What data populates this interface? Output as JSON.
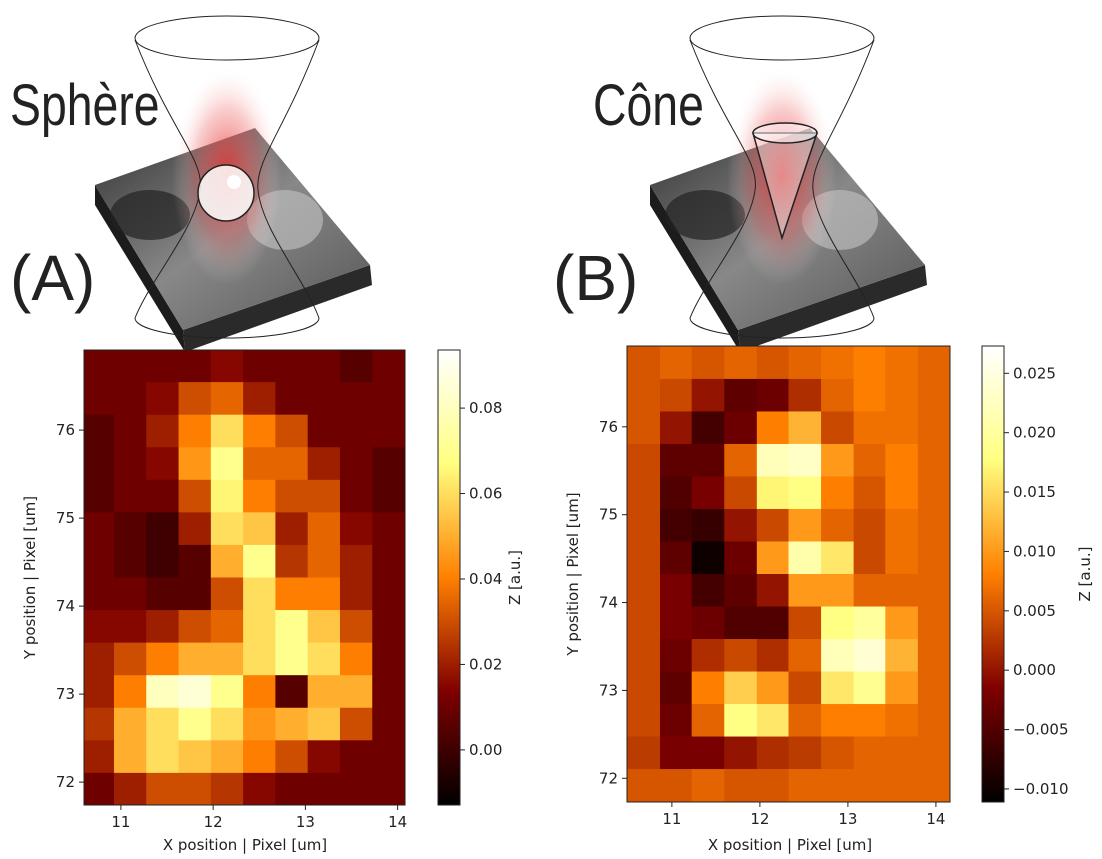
{
  "chart_data": [
    {
      "type": "heatmap",
      "illustration_title": "Sphère",
      "panel_label": "(A)",
      "x_label": "X position | Pixel [um]",
      "y_label": "Y position | Pixel [um]",
      "colorbar_label": "Z [a.u.]",
      "colormap": "afmhot",
      "xlim": [
        10.6,
        14.08
      ],
      "ylim": [
        71.74,
        76.91
      ],
      "clim": [
        -0.0129,
        0.0936
      ],
      "xticks": [
        11,
        12,
        13,
        14
      ],
      "yticks": [
        72,
        73,
        74,
        75,
        76
      ],
      "cticks": [
        {
          "value": 0,
          "label": "0.00"
        },
        0.02,
        0.04,
        0.06,
        0.08
      ],
      "x": [
        10.75,
        11.1,
        11.45,
        11.8,
        12.15,
        12.5,
        12.85,
        13.2,
        13.55,
        13.9
      ],
      "y": [
        76.73,
        76.36,
        75.99,
        75.62,
        75.25,
        74.88,
        74.51,
        74.14,
        73.77,
        73.4,
        73.03,
        72.66,
        72.29,
        71.92
      ],
      "z": [
        [
          0.01,
          0.01,
          0.01,
          0.01,
          0.015,
          0.01,
          0.01,
          0.01,
          0.005,
          0.01
        ],
        [
          0.01,
          0.01,
          0.015,
          0.03,
          0.035,
          0.02,
          0.01,
          0.01,
          0.01,
          0.01
        ],
        [
          0.005,
          0.01,
          0.02,
          0.04,
          0.06,
          0.04,
          0.03,
          0.01,
          0.01,
          0.01
        ],
        [
          0.005,
          0.01,
          0.015,
          0.045,
          0.07,
          0.035,
          0.035,
          0.02,
          0.01,
          0.005
        ],
        [
          0.005,
          0.01,
          0.01,
          0.03,
          0.065,
          0.04,
          0.03,
          0.03,
          0.01,
          0.005
        ],
        [
          0.01,
          0.005,
          0,
          0.02,
          0.06,
          0.055,
          0.02,
          0.035,
          0.015,
          0.01
        ],
        [
          0.01,
          0.005,
          0,
          0.005,
          0.05,
          0.07,
          0.025,
          0.035,
          0.02,
          0.01
        ],
        [
          0.01,
          0.01,
          0.005,
          0.005,
          0.03,
          0.06,
          0.04,
          0.04,
          0.02,
          0.01
        ],
        [
          0.015,
          0.015,
          0.02,
          0.03,
          0.035,
          0.06,
          0.07,
          0.055,
          0.03,
          0.01
        ],
        [
          0.02,
          0.03,
          0.04,
          0.05,
          0.05,
          0.06,
          0.07,
          0.06,
          0.04,
          0.01
        ],
        [
          0.02,
          0.04,
          0.08,
          0.085,
          0.07,
          0.04,
          0.005,
          0.05,
          0.05,
          0.01
        ],
        [
          0.025,
          0.05,
          0.06,
          0.07,
          0.06,
          0.045,
          0.05,
          0.055,
          0.03,
          0.01
        ],
        [
          0.02,
          0.05,
          0.06,
          0.055,
          0.05,
          0.04,
          0.03,
          0.015,
          0.01,
          0.01
        ],
        [
          0.01,
          0.02,
          0.03,
          0.03,
          0.025,
          0.015,
          0.01,
          0.01,
          0.01,
          0.01
        ]
      ]
    },
    {
      "type": "heatmap",
      "illustration_title": "Cône",
      "panel_label": "(B)",
      "x_label": "X position | Pixel [um]",
      "y_label": "Y position | Pixel [um]",
      "colorbar_label": "Z [a.u.]",
      "colormap": "afmhot",
      "xlim": [
        10.49,
        14.16
      ],
      "ylim": [
        71.73,
        76.92
      ],
      "clim": [
        -0.0111,
        0.0273
      ],
      "xticks": [
        11,
        12,
        13,
        14
      ],
      "yticks": [
        72,
        73,
        74,
        75,
        76
      ],
      "cticks": [
        {
          "value": -0.01,
          "label": "−0.010"
        },
        {
          "value": -0.005,
          "label": "−0.005"
        },
        {
          "value": 0,
          "label": "0.000"
        },
        0.005,
        {
          "value": 0.01,
          "label": "0.010"
        },
        0.015,
        {
          "value": 0.02,
          "label": "0.020"
        },
        0.025
      ],
      "x": [
        10.68,
        11.05,
        11.41,
        11.78,
        12.15,
        12.51,
        12.88,
        13.25,
        13.61,
        13.98
      ],
      "y": [
        76.73,
        76.36,
        75.99,
        75.62,
        75.25,
        74.88,
        74.51,
        74.14,
        73.77,
        73.4,
        73.03,
        72.66,
        72.29,
        71.92
      ],
      "z": [
        [
          0.005,
          0.006,
          0.005,
          0.006,
          0.005,
          0.006,
          0.007,
          0.008,
          0.007,
          0.006
        ],
        [
          0.005,
          0.004,
          0,
          -0.004,
          -0.003,
          0.002,
          0.006,
          0.008,
          0.007,
          0.006
        ],
        [
          0.005,
          0,
          -0.006,
          -0.003,
          0.008,
          0.012,
          0.004,
          0.007,
          0.007,
          0.006
        ],
        [
          0.004,
          -0.004,
          -0.004,
          0.006,
          0.022,
          0.023,
          0.01,
          0.006,
          0.008,
          0.006
        ],
        [
          0.004,
          -0.005,
          -0.002,
          0.004,
          0.017,
          0.018,
          0.008,
          0.005,
          0.008,
          0.006
        ],
        [
          0.004,
          -0.006,
          -0.007,
          0,
          0.004,
          0.01,
          0.006,
          0.004,
          0.007,
          0.006
        ],
        [
          0.004,
          -0.004,
          -0.01,
          -0.003,
          0.01,
          0.021,
          0.016,
          0.004,
          0.007,
          0.006
        ],
        [
          0.004,
          -0.002,
          -0.006,
          -0.004,
          0,
          0.01,
          0.01,
          0.006,
          0.006,
          0.006
        ],
        [
          0.004,
          -0.002,
          -0.003,
          -0.005,
          -0.005,
          0.004,
          0.018,
          0.02,
          0.01,
          0.006
        ],
        [
          0.004,
          -0.003,
          0.002,
          0.004,
          0.002,
          0.006,
          0.022,
          0.024,
          0.012,
          0.006
        ],
        [
          0.004,
          -0.004,
          0.008,
          0.014,
          0.01,
          0.004,
          0.016,
          0.019,
          0.01,
          0.006
        ],
        [
          0.004,
          -0.003,
          0.006,
          0.018,
          0.016,
          0.006,
          0.008,
          0.008,
          0.007,
          0.006
        ],
        [
          0.003,
          -0.002,
          -0.002,
          0,
          0.002,
          0.003,
          0.005,
          0.006,
          0.006,
          0.006
        ],
        [
          0.005,
          0.005,
          0.006,
          0.005,
          0.005,
          0.006,
          0.006,
          0.006,
          0.006,
          0.006
        ]
      ]
    }
  ]
}
